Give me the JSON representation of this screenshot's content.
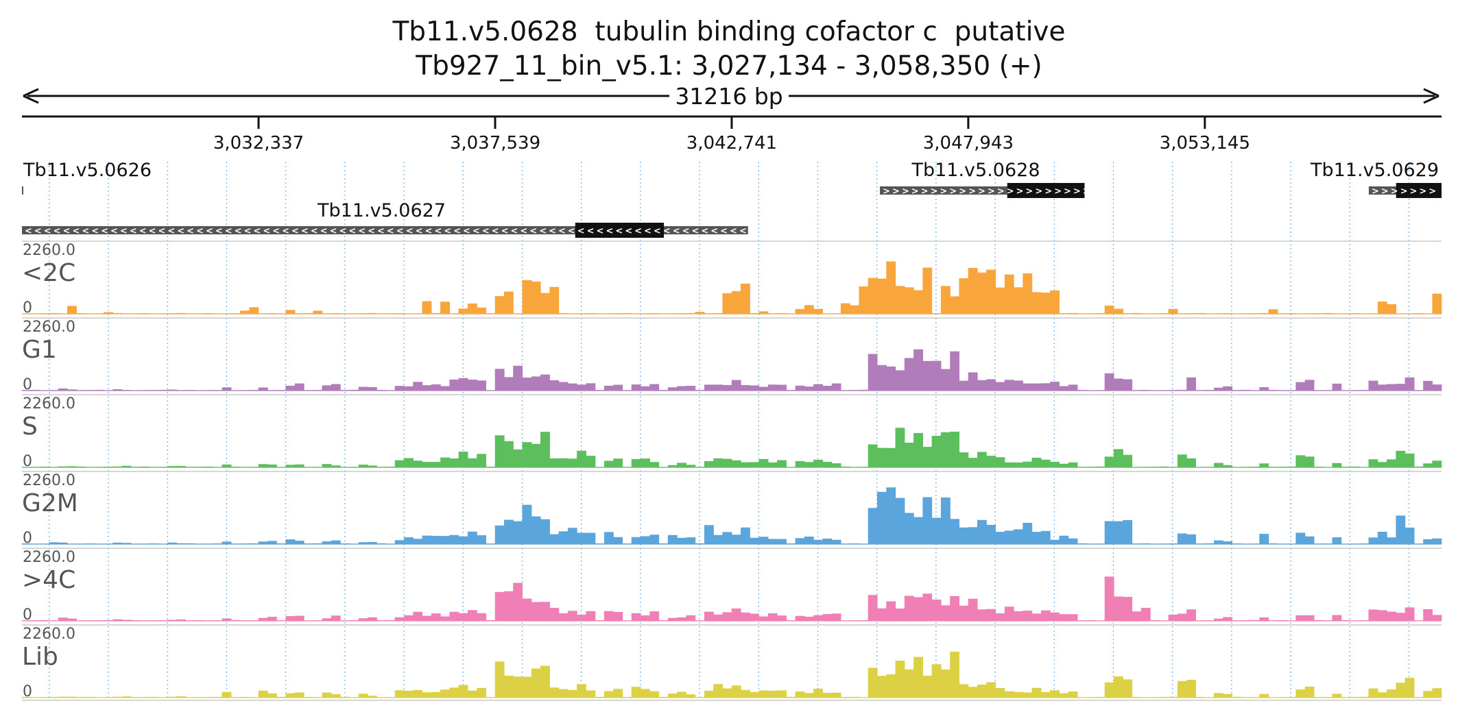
{
  "title": {
    "line1": "Tb11.v5.0628  tubulin binding cofactor c  putative",
    "line2": "Tb927_11_bin_v5.1: 3,027,134 - 3,058,350 (+)"
  },
  "colors": {
    "text": "#111111",
    "track_label": "#555555",
    "grid": "#7fb3e0",
    "gene_backbone": "#555555",
    "gene_cds": "#111111",
    "tracks": {
      "<2C": "#f8a53c",
      "G1": "#b07cba",
      "S": "#5cbe5d",
      "G2M": "#5aa5dc",
      ">4C": "#ef7fb4",
      "Lib": "#dcd145"
    }
  },
  "chart_data": {
    "type": "area",
    "chromosome": "Tb927_11_bin_v5.1",
    "region": {
      "start": 3027134,
      "end": 3058350,
      "strand": "+"
    },
    "span_label": "31216 bp",
    "axis": {
      "ticks": [
        3032337,
        3037539,
        3042741,
        3047943,
        3053145
      ],
      "tick_labels": [
        "3,032,337",
        "3,037,539",
        "3,042,741",
        "3,047,943",
        "3,053,145"
      ]
    },
    "grid": true,
    "genes": [
      {
        "id": "Tb11.v5.0626",
        "strand": "+",
        "start": 3027134,
        "end": 3027160,
        "cds": null
      },
      {
        "id": "Tb11.v5.0627",
        "strand": "-",
        "start": 3027134,
        "end": 3043100,
        "cds": [
          3039300,
          3041250
        ]
      },
      {
        "id": "Tb11.v5.0628",
        "strand": "+",
        "start": 3046000,
        "end": 3050500,
        "cds": [
          3048800,
          3050500
        ]
      },
      {
        "id": "Tb11.v5.0629",
        "strand": "+",
        "start": 3056750,
        "end": 3058350,
        "cds": [
          3057350,
          3058350
        ]
      }
    ],
    "ymax_label": "2260.0",
    "ymin_label": "0",
    "ylim": [
      0,
      2260
    ],
    "bin_size": 200,
    "tracks": [
      {
        "name": "<2C",
        "peaks": [
          [
            3028150,
            3028400,
            300
          ],
          [
            3029000,
            3029200,
            80
          ],
          [
            3032000,
            3032300,
            220
          ],
          [
            3032900,
            3033100,
            150
          ],
          [
            3033600,
            3033800,
            180
          ],
          [
            3035900,
            3036100,
            600
          ],
          [
            3036300,
            3036500,
            700
          ],
          [
            3036800,
            3037300,
            380
          ],
          [
            3037550,
            3038000,
            1200
          ],
          [
            3038100,
            3038900,
            1400
          ],
          [
            3041900,
            3042200,
            120
          ],
          [
            3042500,
            3043200,
            1300
          ],
          [
            3043300,
            3043500,
            120
          ],
          [
            3044200,
            3044800,
            350
          ],
          [
            3045100,
            3045500,
            400
          ],
          [
            3045500,
            3046500,
            1850
          ],
          [
            3046500,
            3047200,
            1700
          ],
          [
            3047300,
            3047700,
            1200
          ],
          [
            3047700,
            3049100,
            1900
          ],
          [
            3049100,
            3049950,
            1400
          ],
          [
            3050900,
            3051350,
            300
          ],
          [
            3052300,
            3052550,
            250
          ],
          [
            3054500,
            3054750,
            320
          ],
          [
            3056950,
            3057350,
            450
          ],
          [
            3058200,
            3058350,
            1050
          ]
        ]
      },
      {
        "name": "G1",
        "peaks": [
          [
            3027950,
            3028250,
            70
          ],
          [
            3029150,
            3029400,
            60
          ],
          [
            3030300,
            3030600,
            60
          ],
          [
            3031450,
            3031800,
            160
          ],
          [
            3032250,
            3032600,
            200
          ],
          [
            3032900,
            3033400,
            330
          ],
          [
            3033650,
            3034200,
            250
          ],
          [
            3034600,
            3034900,
            160
          ],
          [
            3035300,
            3036600,
            300
          ],
          [
            3036600,
            3037400,
            500
          ],
          [
            3037500,
            3038700,
            900
          ],
          [
            3038700,
            3039700,
            380
          ],
          [
            3039900,
            3040350,
            280
          ],
          [
            3040500,
            3041100,
            240
          ],
          [
            3041400,
            3041900,
            200
          ],
          [
            3042200,
            3043100,
            360
          ],
          [
            3043200,
            3044000,
            250
          ],
          [
            3044200,
            3045200,
            260
          ],
          [
            3045700,
            3046500,
            1300
          ],
          [
            3046500,
            3047800,
            1550
          ],
          [
            3047800,
            3048500,
            680
          ],
          [
            3048500,
            3049700,
            420
          ],
          [
            3049800,
            3050400,
            300
          ],
          [
            3051000,
            3051450,
            700
          ],
          [
            3052700,
            3052950,
            450
          ],
          [
            3053400,
            3053650,
            180
          ],
          [
            3054300,
            3054600,
            220
          ],
          [
            3055150,
            3055450,
            600
          ],
          [
            3055850,
            3056150,
            320
          ],
          [
            3056700,
            3057300,
            350
          ],
          [
            3057300,
            3057750,
            500
          ],
          [
            3057900,
            3058350,
            380
          ]
        ]
      },
      {
        "name": "S",
        "peaks": [
          [
            3027950,
            3028250,
            50
          ],
          [
            3029200,
            3029450,
            50
          ],
          [
            3030350,
            3030650,
            50
          ],
          [
            3031450,
            3031800,
            90
          ],
          [
            3032300,
            3032650,
            120
          ],
          [
            3032900,
            3033400,
            160
          ],
          [
            3033650,
            3034200,
            130
          ],
          [
            3034600,
            3034900,
            90
          ],
          [
            3035300,
            3035600,
            300
          ],
          [
            3035600,
            3036600,
            350
          ],
          [
            3036600,
            3037300,
            650
          ],
          [
            3037500,
            3038700,
            1250
          ],
          [
            3038700,
            3039700,
            600
          ],
          [
            3039900,
            3040350,
            450
          ],
          [
            3040500,
            3041100,
            380
          ],
          [
            3041400,
            3041900,
            150
          ],
          [
            3042200,
            3043100,
            350
          ],
          [
            3043200,
            3044000,
            300
          ],
          [
            3044200,
            3045200,
            280
          ],
          [
            3045700,
            3046500,
            1400
          ],
          [
            3046500,
            3047800,
            1520
          ],
          [
            3047800,
            3048500,
            700
          ],
          [
            3048500,
            3049700,
            350
          ],
          [
            3049800,
            3050400,
            260
          ],
          [
            3051000,
            3051450,
            800
          ],
          [
            3052600,
            3052950,
            500
          ],
          [
            3053400,
            3053650,
            150
          ],
          [
            3054300,
            3054600,
            180
          ],
          [
            3055150,
            3055450,
            550
          ],
          [
            3055850,
            3056150,
            300
          ],
          [
            3056700,
            3057300,
            380
          ],
          [
            3057300,
            3057750,
            650
          ],
          [
            3057900,
            3058350,
            280
          ]
        ]
      },
      {
        "name": "G2M",
        "peaks": [
          [
            3027700,
            3028200,
            100
          ],
          [
            3029200,
            3029450,
            50
          ],
          [
            3030350,
            3030650,
            50
          ],
          [
            3031450,
            3031800,
            130
          ],
          [
            3032300,
            3032650,
            150
          ],
          [
            3032900,
            3033400,
            180
          ],
          [
            3033650,
            3034200,
            160
          ],
          [
            3034600,
            3034900,
            110
          ],
          [
            3035300,
            3035600,
            250
          ],
          [
            3035600,
            3036600,
            350
          ],
          [
            3036600,
            3037300,
            500
          ],
          [
            3037500,
            3038700,
            1400
          ],
          [
            3038700,
            3039700,
            600
          ],
          [
            3039900,
            3040350,
            460
          ],
          [
            3040500,
            3041100,
            450
          ],
          [
            3041400,
            3041900,
            380
          ],
          [
            3042200,
            3043100,
            650
          ],
          [
            3043200,
            3044000,
            300
          ],
          [
            3044200,
            3045200,
            290
          ],
          [
            3045700,
            3046500,
            2260
          ],
          [
            3046500,
            3047800,
            1800
          ],
          [
            3047800,
            3048500,
            900
          ],
          [
            3048500,
            3049700,
            750
          ],
          [
            3049800,
            3050400,
            310
          ],
          [
            3051000,
            3051450,
            1000
          ],
          [
            3052600,
            3052950,
            620
          ],
          [
            3053400,
            3053650,
            160
          ],
          [
            3054300,
            3054600,
            400
          ],
          [
            3055150,
            3055450,
            400
          ],
          [
            3055850,
            3056150,
            300
          ],
          [
            3056700,
            3057300,
            450
          ],
          [
            3057300,
            3057750,
            1150
          ],
          [
            3057900,
            3058350,
            220
          ]
        ]
      },
      {
        "name": ">4C",
        "peaks": [
          [
            3027950,
            3028250,
            120
          ],
          [
            3029200,
            3029450,
            60
          ],
          [
            3030350,
            3030650,
            60
          ],
          [
            3031450,
            3031800,
            150
          ],
          [
            3032300,
            3032650,
            200
          ],
          [
            3032900,
            3033400,
            220
          ],
          [
            3033650,
            3034200,
            180
          ],
          [
            3034600,
            3034900,
            130
          ],
          [
            3035300,
            3035600,
            250
          ],
          [
            3035600,
            3036600,
            320
          ],
          [
            3036600,
            3037300,
            400
          ],
          [
            3037500,
            3038700,
            1400
          ],
          [
            3038700,
            3039700,
            450
          ],
          [
            3039900,
            3040350,
            420
          ],
          [
            3040500,
            3041100,
            330
          ],
          [
            3041400,
            3041900,
            200
          ],
          [
            3042200,
            3043100,
            450
          ],
          [
            3043200,
            3044000,
            320
          ],
          [
            3044200,
            3045200,
            280
          ],
          [
            3045700,
            3046500,
            900
          ],
          [
            3046500,
            3047800,
            1100
          ],
          [
            3047800,
            3048500,
            800
          ],
          [
            3048500,
            3049700,
            500
          ],
          [
            3049800,
            3050400,
            320
          ],
          [
            3050900,
            3051500,
            1600
          ],
          [
            3051500,
            3051900,
            500
          ],
          [
            3052400,
            3052950,
            400
          ],
          [
            3053400,
            3053650,
            150
          ],
          [
            3054300,
            3054600,
            220
          ],
          [
            3055150,
            3055450,
            350
          ],
          [
            3055850,
            3056150,
            350
          ],
          [
            3056700,
            3057300,
            470
          ],
          [
            3057300,
            3057750,
            550
          ],
          [
            3057900,
            3058350,
            420
          ]
        ]
      },
      {
        "name": "Lib",
        "peaks": [
          [
            3027950,
            3028250,
            40
          ],
          [
            3029200,
            3029450,
            40
          ],
          [
            3030350,
            3030650,
            40
          ],
          [
            3031450,
            3031800,
            200
          ],
          [
            3032300,
            3032650,
            260
          ],
          [
            3032900,
            3033400,
            280
          ],
          [
            3033650,
            3034200,
            210
          ],
          [
            3034600,
            3034900,
            130
          ],
          [
            3035300,
            3035600,
            280
          ],
          [
            3035600,
            3036600,
            320
          ],
          [
            3036600,
            3037300,
            500
          ],
          [
            3037500,
            3038700,
            1250
          ],
          [
            3038700,
            3039700,
            500
          ],
          [
            3039900,
            3040350,
            450
          ],
          [
            3040500,
            3041100,
            400
          ],
          [
            3041400,
            3041900,
            200
          ],
          [
            3042200,
            3043100,
            500
          ],
          [
            3043200,
            3044000,
            300
          ],
          [
            3044200,
            3045200,
            300
          ],
          [
            3045700,
            3046500,
            1400
          ],
          [
            3046500,
            3047800,
            1650
          ],
          [
            3047800,
            3048500,
            700
          ],
          [
            3048500,
            3049700,
            350
          ],
          [
            3049800,
            3050400,
            300
          ],
          [
            3051000,
            3051450,
            1050
          ],
          [
            3052600,
            3052950,
            800
          ],
          [
            3053400,
            3053650,
            170
          ],
          [
            3054300,
            3054600,
            240
          ],
          [
            3055150,
            3055450,
            450
          ],
          [
            3055850,
            3056150,
            250
          ],
          [
            3056700,
            3057300,
            380
          ],
          [
            3057300,
            3057750,
            750
          ],
          [
            3057900,
            3058350,
            460
          ]
        ]
      }
    ]
  }
}
